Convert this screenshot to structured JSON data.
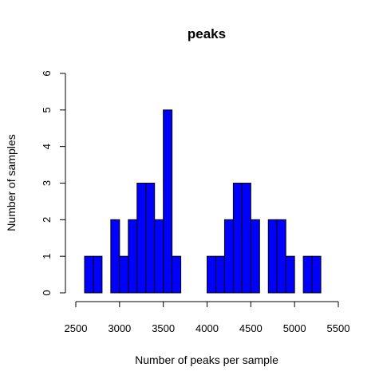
{
  "chart_data": {
    "type": "bar",
    "title": "peaks",
    "xlabel": "Number of peaks per sample",
    "ylabel": "Number of samples",
    "xlim": [
      2500,
      5500
    ],
    "ylim": [
      0,
      6
    ],
    "x_ticks": [
      2500,
      3000,
      3500,
      4000,
      4500,
      5000,
      5500
    ],
    "y_ticks": [
      0,
      1,
      2,
      3,
      4,
      5,
      6
    ],
    "bin_width": 100,
    "bins": [
      {
        "start": 2600,
        "end": 2700,
        "count": 1
      },
      {
        "start": 2700,
        "end": 2800,
        "count": 1
      },
      {
        "start": 2800,
        "end": 2900,
        "count": 0
      },
      {
        "start": 2900,
        "end": 3000,
        "count": 2
      },
      {
        "start": 3000,
        "end": 3100,
        "count": 1
      },
      {
        "start": 3100,
        "end": 3200,
        "count": 2
      },
      {
        "start": 3200,
        "end": 3300,
        "count": 3
      },
      {
        "start": 3300,
        "end": 3400,
        "count": 3
      },
      {
        "start": 3400,
        "end": 3500,
        "count": 2
      },
      {
        "start": 3500,
        "end": 3600,
        "count": 5
      },
      {
        "start": 3600,
        "end": 3700,
        "count": 1
      },
      {
        "start": 3700,
        "end": 3800,
        "count": 0
      },
      {
        "start": 3800,
        "end": 3900,
        "count": 0
      },
      {
        "start": 3900,
        "end": 4000,
        "count": 0
      },
      {
        "start": 4000,
        "end": 4100,
        "count": 1
      },
      {
        "start": 4100,
        "end": 4200,
        "count": 1
      },
      {
        "start": 4200,
        "end": 4300,
        "count": 2
      },
      {
        "start": 4300,
        "end": 4400,
        "count": 3
      },
      {
        "start": 4400,
        "end": 4500,
        "count": 3
      },
      {
        "start": 4500,
        "end": 4600,
        "count": 2
      },
      {
        "start": 4600,
        "end": 4700,
        "count": 0
      },
      {
        "start": 4700,
        "end": 4800,
        "count": 2
      },
      {
        "start": 4800,
        "end": 4900,
        "count": 2
      },
      {
        "start": 4900,
        "end": 5000,
        "count": 1
      },
      {
        "start": 5000,
        "end": 5100,
        "count": 0
      },
      {
        "start": 5100,
        "end": 5200,
        "count": 1
      },
      {
        "start": 5200,
        "end": 5300,
        "count": 1
      }
    ],
    "bar_color": "#0000ff",
    "bar_border_color": "#000000",
    "grid": false,
    "legend": "none"
  }
}
